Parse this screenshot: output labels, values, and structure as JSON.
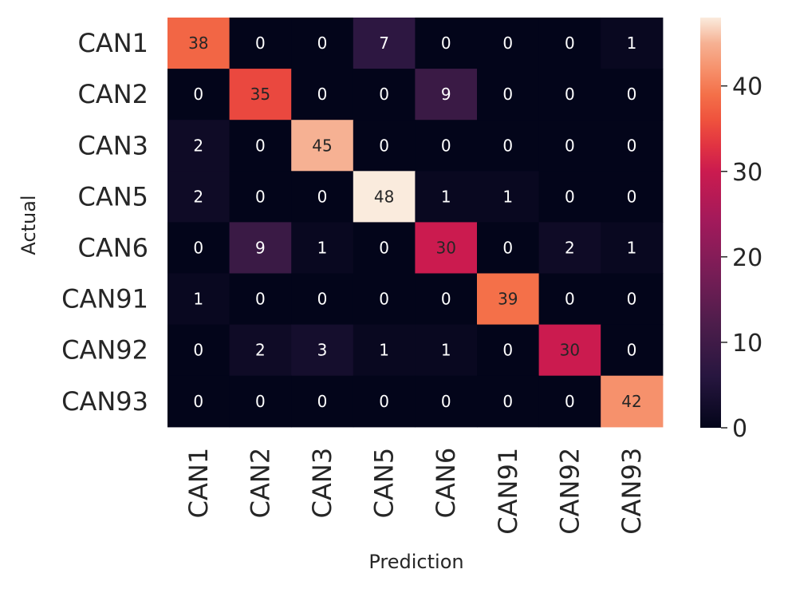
{
  "chart_data": {
    "type": "heatmap",
    "rows": [
      "CAN1",
      "CAN2",
      "CAN3",
      "CAN5",
      "CAN6",
      "CAN91",
      "CAN92",
      "CAN93"
    ],
    "columns": [
      "CAN1",
      "CAN2",
      "CAN3",
      "CAN5",
      "CAN6",
      "CAN91",
      "CAN92",
      "CAN93"
    ],
    "values": [
      [
        38,
        0,
        0,
        7,
        0,
        0,
        0,
        1
      ],
      [
        0,
        35,
        0,
        0,
        9,
        0,
        0,
        0
      ],
      [
        2,
        0,
        45,
        0,
        0,
        0,
        0,
        0
      ],
      [
        2,
        0,
        0,
        48,
        1,
        1,
        0,
        0
      ],
      [
        0,
        9,
        1,
        0,
        30,
        0,
        2,
        1
      ],
      [
        1,
        0,
        0,
        0,
        0,
        39,
        0,
        0
      ],
      [
        0,
        2,
        3,
        1,
        1,
        0,
        30,
        0
      ],
      [
        0,
        0,
        0,
        0,
        0,
        0,
        0,
        42
      ]
    ],
    "xlabel": "Prediction",
    "ylabel": "Actual",
    "colormap": "rocket",
    "colorbar": {
      "range": [
        0,
        48
      ],
      "ticks": [
        0,
        10,
        20,
        30,
        40
      ]
    },
    "annotations": "cell values shown",
    "grid": false,
    "legend": "colorbar-right"
  }
}
